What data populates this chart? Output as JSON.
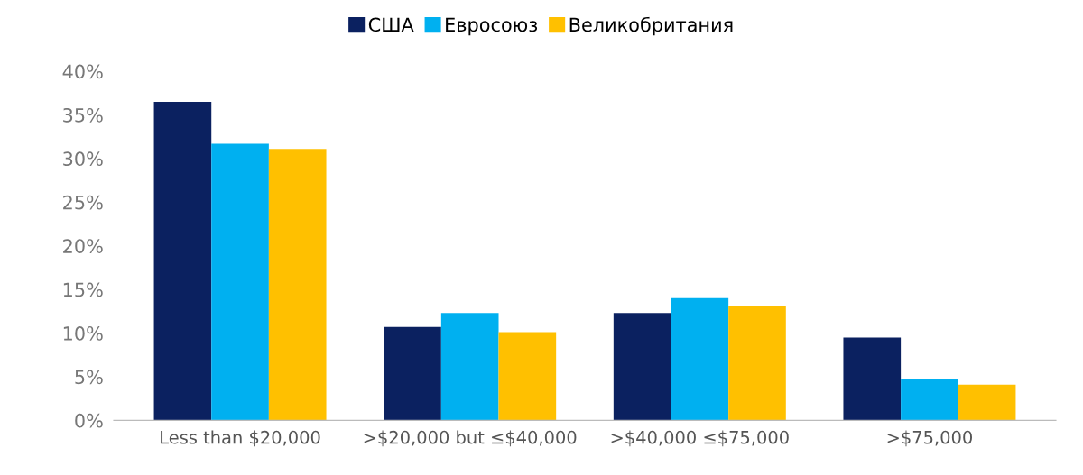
{
  "chart_data": {
    "type": "bar",
    "categories": [
      "Less than $20,000",
      ">$20,000 but ≤$40,000",
      ">$40,000 ≤$75,000",
      ">$75,000"
    ],
    "series": [
      {
        "name": "США",
        "color": "#0b2160",
        "values": [
          36.5,
          10.7,
          12.3,
          9.5
        ]
      },
      {
        "name": "Евросоюз",
        "color": "#00b0f0",
        "values": [
          31.7,
          12.3,
          14.0,
          4.8
        ]
      },
      {
        "name": "Великобритания",
        "color": "#ffc000",
        "values": [
          31.1,
          10.1,
          13.1,
          4.1
        ]
      }
    ],
    "ylim": [
      0,
      40
    ],
    "yticks": [
      {
        "value": 0,
        "label": "0%"
      },
      {
        "value": 5,
        "label": "5%"
      },
      {
        "value": 10,
        "label": "10%"
      },
      {
        "value": 15,
        "label": "15%"
      },
      {
        "value": 20,
        "label": "20%"
      },
      {
        "value": 25,
        "label": "25%"
      },
      {
        "value": 30,
        "label": "30%"
      },
      {
        "value": 35,
        "label": "35%"
      },
      {
        "value": 40,
        "label": "40%"
      }
    ],
    "grid": false,
    "legend": "top"
  }
}
